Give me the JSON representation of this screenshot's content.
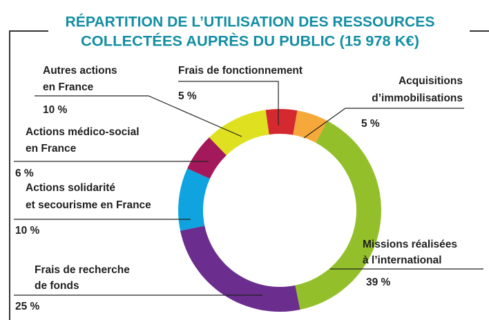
{
  "chart_data": {
    "type": "donut",
    "title": [
      "RÉPARTITION DE L’UTILISATION DES RESSOURCES",
      "COLLECTÉES AUPRÈS DU PUBLIC (15 978 K€)"
    ],
    "categories": [
      [
        "Frais de fonctionnement"
      ],
      [
        "Acquisitions",
        "d’immobilisations"
      ],
      [
        "Missions réalisées",
        "à l’international"
      ],
      [
        "Frais de recherche",
        "de fonds"
      ],
      [
        "Actions solidarité",
        "et secourisme en France"
      ],
      [
        "Actions médico-social",
        "en France"
      ],
      [
        "Autres actions",
        "en France"
      ]
    ],
    "values": [
      5,
      5,
      39,
      25,
      10,
      6,
      10
    ],
    "value_labels": [
      "5 %",
      "5 %",
      "39 %",
      "25 %",
      "10 %",
      "6 %",
      "10 %"
    ],
    "colors": [
      "#d42a2f",
      "#f7a83a",
      "#93c02a",
      "#6b2d8e",
      "#0fa3e0",
      "#a3195b",
      "#dfe01f"
    ]
  }
}
